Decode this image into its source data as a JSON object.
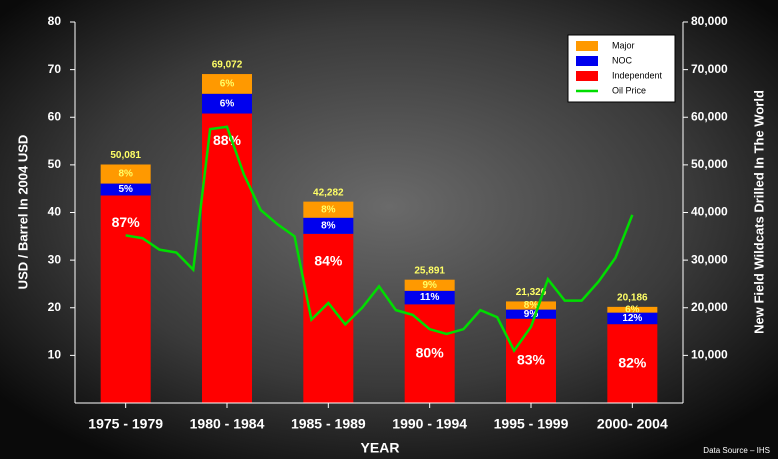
{
  "chart_data": {
    "type": "bar",
    "x_label": "YEAR",
    "y_label": "USD / Barrel In 2004 USD",
    "y2_label": "New Field Wildcats Drilled In The World",
    "source": "Data Source – IHS",
    "categories": [
      "1975 - 1979",
      "1980 - 1984",
      "1985 - 1989",
      "1990 - 1994",
      "1995 - 1999",
      "2000- 2004"
    ],
    "series": [
      {
        "name": "Independent",
        "color": "#ff0000",
        "axis": "y2",
        "values": [
          43570,
          60783,
          35517,
          20713,
          17701,
          16553
        ],
        "value_labels": [
          "87%",
          "88%",
          "84%",
          "80%",
          "83%",
          "82%"
        ]
      },
      {
        "name": "NOC",
        "color": "#0000ee",
        "axis": "y2",
        "values": [
          2504,
          4144,
          3383,
          2848,
          1919,
          2422
        ],
        "value_labels": [
          "5%",
          "6%",
          "8%",
          "11%",
          "9%",
          "12%"
        ]
      },
      {
        "name": "Major",
        "color": "#ff9900",
        "axis": "y2",
        "values": [
          4006,
          4144,
          3383,
          2330,
          1706,
          1211
        ],
        "value_labels": [
          "8%",
          "6%",
          "8%",
          "9%",
          "8%",
          "6%"
        ]
      }
    ],
    "totals": [
      50081,
      69072,
      42282,
      25891,
      21326,
      20186
    ],
    "total_labels": [
      "50,081",
      "69,072",
      "42,282",
      "25,891",
      "21,326",
      "20,186"
    ],
    "line": {
      "name": "Oil Price",
      "color": "#00dd00",
      "values": [
        35.2,
        34.6,
        32.2,
        31.6,
        28,
        57.5,
        58,
        48,
        40.5,
        37.5,
        35,
        17.5,
        21,
        16.5,
        20,
        24.5,
        19.5,
        18.5,
        15.5,
        14.5,
        15.5,
        19.5,
        18,
        11,
        16,
        26,
        21.5,
        21.5,
        25.5,
        30.5,
        39.5
      ]
    },
    "ylim": [
      0,
      80
    ],
    "yticks": [
      10,
      20,
      30,
      40,
      50,
      60,
      70,
      80
    ],
    "y2lim": [
      0,
      80000
    ],
    "y2ticks": [
      {
        "value": 10000,
        "label": "10,000"
      },
      {
        "value": 20000,
        "label": "20,000"
      },
      {
        "value": 30000,
        "label": "30,000"
      },
      {
        "value": 40000,
        "label": "40,000"
      },
      {
        "value": 50000,
        "label": "50,000"
      },
      {
        "value": 60000,
        "label": "60,000"
      },
      {
        "value": 70000,
        "label": "70,000"
      },
      {
        "value": 80000,
        "label": "80,000"
      }
    ],
    "legend": "top-right"
  }
}
